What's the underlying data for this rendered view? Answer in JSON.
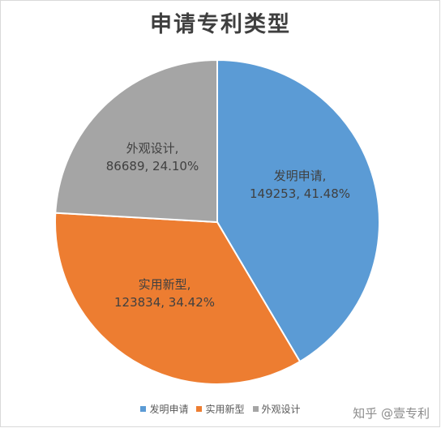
{
  "chart_data": {
    "type": "pie",
    "title": "申请专利类型",
    "slices": [
      {
        "label": "发明申请",
        "value": 149253,
        "percent": "41.48%",
        "color": "#5b9bd5"
      },
      {
        "label": "实用新型",
        "value": 123834,
        "percent": "34.42%",
        "color": "#ed7d31"
      },
      {
        "label": "外观设计",
        "value": 86689,
        "percent": "24.10%",
        "color": "#a5a5a5"
      }
    ],
    "legend_position": "bottom"
  },
  "watermark": {
    "text": "知乎 @壹专利"
  }
}
